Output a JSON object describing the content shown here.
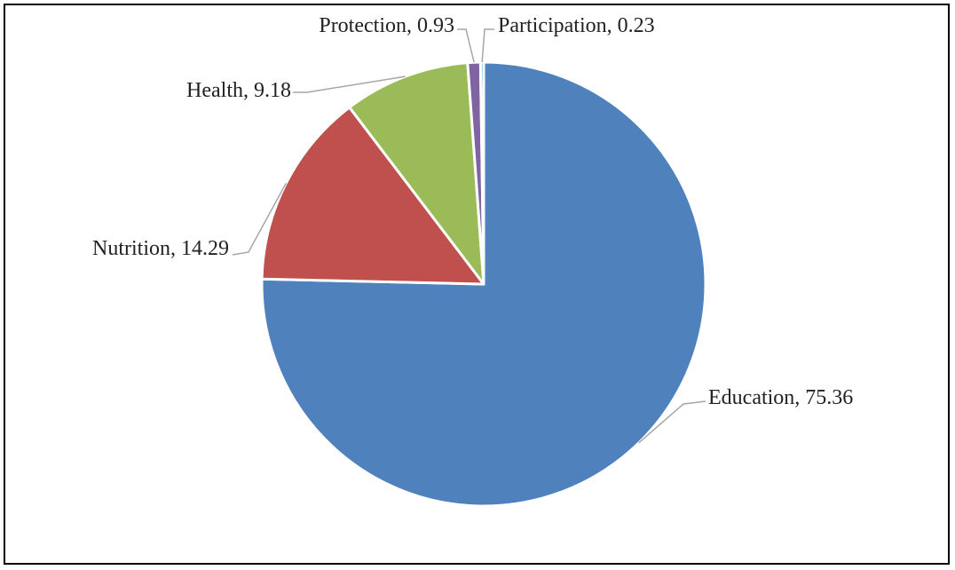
{
  "chart_data": {
    "type": "pie",
    "title": "",
    "slices": [
      {
        "label": "Education",
        "value": 75.36,
        "display": "Education, 75.36",
        "color": "#4f81bd"
      },
      {
        "label": "Nutrition",
        "value": 14.29,
        "display": "Nutrition, 14.29",
        "color": "#c0504d"
      },
      {
        "label": "Health",
        "value": 9.18,
        "display": "Health, 9.18",
        "color": "#9bbb59"
      },
      {
        "label": "Protection",
        "value": 0.93,
        "display": "Protection, 0.93",
        "color": "#8064a2"
      },
      {
        "label": "Participation",
        "value": 0.23,
        "display": "Participation, 0.23",
        "color": "#4bacc6"
      }
    ],
    "start_angle": "12 o'clock",
    "direction": "clockwise",
    "legend": "none",
    "data_labels": "outside with leader lines"
  }
}
